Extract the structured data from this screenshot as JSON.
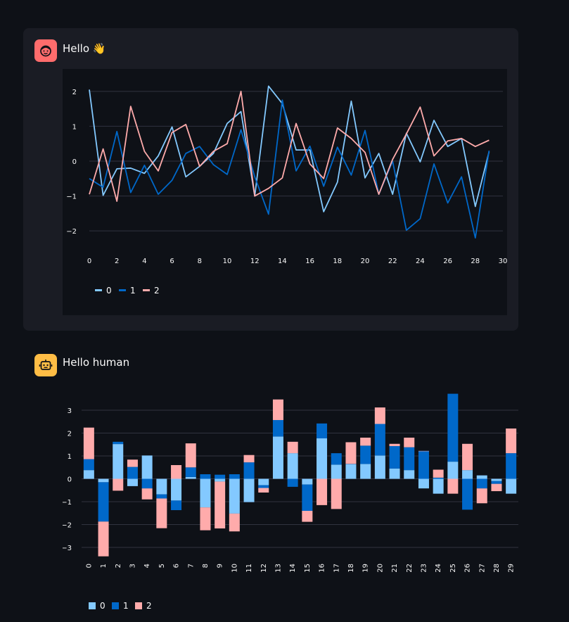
{
  "messages": [
    {
      "role": "user",
      "text": "Hello 👋"
    },
    {
      "role": "assistant",
      "text": "Hello human"
    }
  ],
  "colors": {
    "series0": "#83c9ff",
    "series1": "#0068c9",
    "series2": "#ffabab",
    "user_avatar": "#ff6c6c",
    "assistant_avatar": "#ffbd45"
  },
  "chart_data": [
    {
      "type": "line",
      "x": [
        0,
        1,
        2,
        3,
        4,
        5,
        6,
        7,
        8,
        9,
        10,
        11,
        12,
        13,
        14,
        15,
        16,
        17,
        18,
        19,
        20,
        21,
        22,
        23,
        24,
        25,
        26,
        27,
        28,
        29
      ],
      "series": [
        {
          "name": "0",
          "values": [
            2.05,
            -0.98,
            -0.22,
            -0.2,
            -0.35,
            0.15,
            0.98,
            -0.45,
            -0.15,
            0.22,
            1.08,
            1.42,
            -1.0,
            2.15,
            1.65,
            0.32,
            0.32,
            -1.45,
            -0.6,
            1.72,
            -0.48,
            0.22,
            -0.95,
            0.8,
            -0.02,
            1.17,
            0.42,
            0.65,
            -1.3,
            0.27
          ]
        },
        {
          "name": "1",
          "values": [
            -0.5,
            -0.75,
            0.85,
            -0.9,
            -0.12,
            -0.95,
            -0.55,
            0.22,
            0.42,
            -0.1,
            -0.38,
            0.9,
            -0.45,
            -1.52,
            1.75,
            -0.28,
            0.43,
            -0.72,
            0.4,
            -0.4,
            0.88,
            -0.95,
            0.0,
            -1.98,
            -1.65,
            -0.08,
            -1.2,
            -0.45,
            -2.2,
            0.3
          ]
        },
        {
          "name": "2",
          "values": [
            -0.95,
            0.35,
            -1.15,
            1.57,
            0.28,
            -0.28,
            0.82,
            1.05,
            -0.15,
            0.28,
            0.5,
            2.0,
            -1.0,
            -0.78,
            -0.48,
            1.08,
            -0.08,
            -0.5,
            0.95,
            0.65,
            0.25,
            -0.95,
            0.05,
            0.78,
            1.55,
            0.15,
            0.58,
            0.65,
            0.42,
            0.6
          ]
        }
      ],
      "xticks": [
        "0",
        "2",
        "4",
        "6",
        "8",
        "10",
        "12",
        "14",
        "16",
        "18",
        "20",
        "22",
        "24",
        "26",
        "28",
        "30"
      ],
      "yticks": [
        "−2",
        "−1",
        "0",
        "1",
        "2"
      ],
      "xlim": [
        0,
        30
      ],
      "ylim": [
        -2.4,
        2.4
      ],
      "xlabel": "",
      "ylabel": "",
      "legend": [
        "0",
        "1",
        "2"
      ],
      "legend_position": "bottom-left",
      "grid": true
    },
    {
      "type": "bar",
      "stacked": true,
      "categories": [
        "0",
        "1",
        "2",
        "3",
        "4",
        "5",
        "6",
        "7",
        "8",
        "9",
        "10",
        "11",
        "12",
        "13",
        "14",
        "15",
        "16",
        "17",
        "18",
        "19",
        "20",
        "21",
        "22",
        "23",
        "24",
        "25",
        "26",
        "27",
        "28",
        "29"
      ],
      "series": [
        {
          "name": "0",
          "values": [
            0.38,
            -0.15,
            1.52,
            -0.32,
            1.02,
            -0.68,
            -0.95,
            0.08,
            -1.25,
            -0.12,
            -1.52,
            -1.02,
            -0.28,
            1.85,
            1.12,
            -0.25,
            1.77,
            0.62,
            0.65,
            0.65,
            1.02,
            0.45,
            0.38,
            -0.42,
            -0.65,
            0.75,
            0.38,
            0.15,
            -0.1,
            -0.65
          ]
        },
        {
          "name": "1",
          "values": [
            0.48,
            -1.72,
            0.1,
            0.52,
            -0.42,
            -0.18,
            -0.42,
            0.42,
            0.2,
            0.18,
            0.2,
            0.72,
            -0.12,
            0.72,
            -0.35,
            -1.15,
            0.65,
            0.5,
            0.0,
            0.8,
            1.38,
            0.98,
            1.0,
            1.22,
            0.05,
            2.97,
            -1.35,
            -0.42,
            -0.12,
            1.12
          ]
        },
        {
          "name": "2",
          "values": [
            1.38,
            -1.52,
            -0.52,
            0.32,
            -0.48,
            -1.3,
            0.6,
            1.05,
            -1.0,
            -2.05,
            -0.78,
            0.32,
            -0.2,
            0.9,
            0.5,
            -0.48,
            -1.15,
            -1.32,
            0.95,
            0.35,
            0.72,
            0.1,
            0.42,
            0.0,
            0.35,
            -0.65,
            1.15,
            -0.65,
            -0.32,
            1.08
          ]
        }
      ],
      "yticks": [
        "−3",
        "−2",
        "−1",
        "0",
        "1",
        "2",
        "3"
      ],
      "ylim": [
        -3.4,
        3.8
      ],
      "xlabel": "",
      "ylabel": "",
      "legend": [
        "0",
        "1",
        "2"
      ],
      "legend_position": "bottom-left",
      "grid": true
    }
  ]
}
